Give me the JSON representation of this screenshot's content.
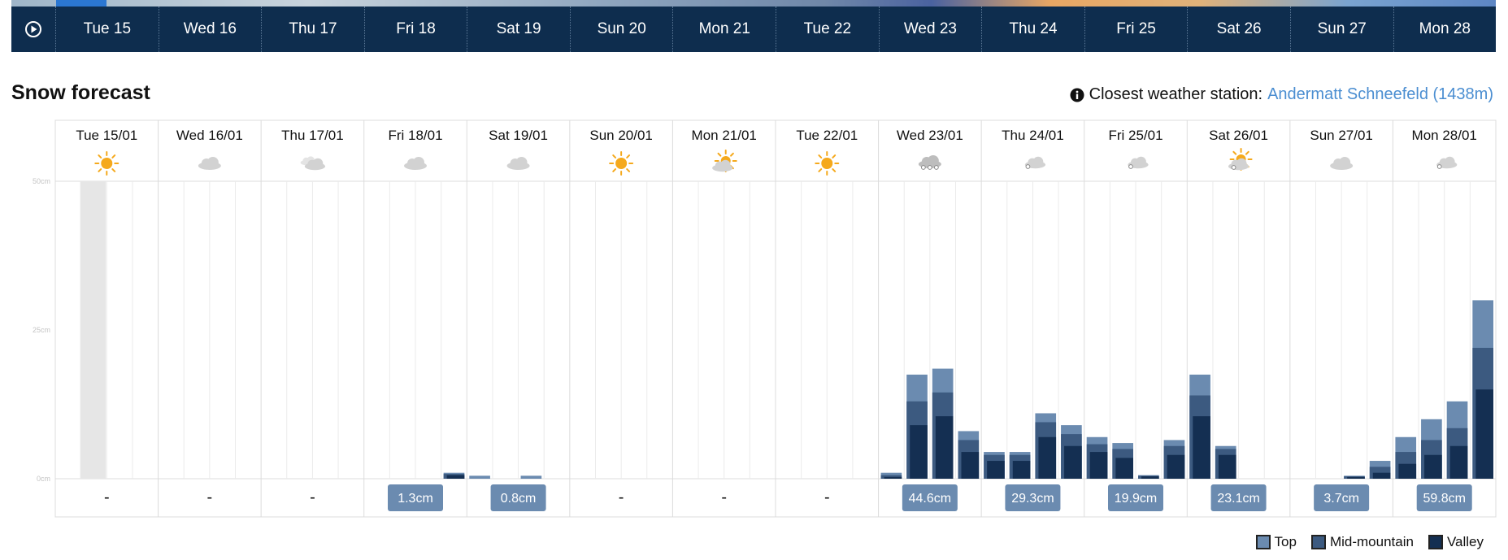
{
  "timeline": {
    "days": [
      "Tue 15",
      "Wed 16",
      "Thu 17",
      "Fri 18",
      "Sat 19",
      "Sun 20",
      "Mon 21",
      "Tue 22",
      "Wed 23",
      "Thu 24",
      "Fri 25",
      "Sat 26",
      "Sun 27",
      "Mon 28"
    ]
  },
  "section_title": "Snow forecast",
  "station": {
    "label": "Closest weather station:",
    "name": "Andermatt Schneefeld (1438m)"
  },
  "legend": [
    {
      "label": "Top",
      "color": "#6b8bb0"
    },
    {
      "label": "Mid-mountain",
      "color": "#3c5a80"
    },
    {
      "label": "Valley",
      "color": "#142f52"
    }
  ],
  "chart_data": {
    "type": "bar",
    "ylim": [
      0,
      50
    ],
    "yticks": [
      "0cm",
      "25cm",
      "50cm"
    ],
    "days": [
      {
        "label": "Tue 15/01",
        "icon": "sun-icon",
        "total": "-",
        "top": [
          0,
          0,
          0,
          0
        ],
        "mid": [
          0,
          0,
          0,
          0
        ],
        "valley": [
          0,
          0,
          0,
          0
        ]
      },
      {
        "label": "Wed 16/01",
        "icon": "cloud-icon",
        "total": "-",
        "top": [
          0,
          0,
          0,
          0
        ],
        "mid": [
          0,
          0,
          0,
          0
        ],
        "valley": [
          0,
          0,
          0,
          0
        ]
      },
      {
        "label": "Thu 17/01",
        "icon": "light-cloud-icon",
        "total": "-",
        "top": [
          0,
          0,
          0,
          0
        ],
        "mid": [
          0,
          0,
          0,
          0
        ],
        "valley": [
          0,
          0,
          0,
          0
        ]
      },
      {
        "label": "Fri 18/01",
        "icon": "cloud-icon",
        "total": "1.3cm",
        "top": [
          0,
          0,
          0,
          1.0
        ],
        "mid": [
          0,
          0,
          0,
          0.8
        ],
        "valley": [
          0,
          0,
          0,
          0.6
        ]
      },
      {
        "label": "Sat 19/01",
        "icon": "cloud-icon",
        "total": "0.8cm",
        "top": [
          0.5,
          0,
          0.5,
          0
        ],
        "mid": [
          0,
          0,
          0,
          0
        ],
        "valley": [
          0,
          0,
          0,
          0
        ]
      },
      {
        "label": "Sun 20/01",
        "icon": "sun-icon",
        "total": "-",
        "top": [
          0,
          0,
          0,
          0
        ],
        "mid": [
          0,
          0,
          0,
          0
        ],
        "valley": [
          0,
          0,
          0,
          0
        ]
      },
      {
        "label": "Mon 21/01",
        "icon": "sun-cloud-icon",
        "total": "-",
        "top": [
          0,
          0,
          0,
          0
        ],
        "mid": [
          0,
          0,
          0,
          0
        ],
        "valley": [
          0,
          0,
          0,
          0
        ]
      },
      {
        "label": "Tue 22/01",
        "icon": "sun-icon",
        "total": "-",
        "top": [
          0,
          0,
          0,
          0
        ],
        "mid": [
          0,
          0,
          0,
          0
        ],
        "valley": [
          0,
          0,
          0,
          0
        ]
      },
      {
        "label": "Wed 23/01",
        "icon": "heavy-snow-icon",
        "total": "44.6cm",
        "top": [
          1.0,
          17.5,
          18.5,
          8.0
        ],
        "mid": [
          0.6,
          13.0,
          14.5,
          6.5
        ],
        "valley": [
          0.3,
          9.0,
          10.5,
          4.5
        ]
      },
      {
        "label": "Thu 24/01",
        "icon": "snow-cloud-icon",
        "total": "29.3cm",
        "top": [
          4.5,
          4.5,
          11.0,
          9.0
        ],
        "mid": [
          4.0,
          4.0,
          9.5,
          7.5
        ],
        "valley": [
          3.0,
          3.0,
          7.0,
          5.5
        ]
      },
      {
        "label": "Fri 25/01",
        "icon": "snow-cloud-icon",
        "total": "19.9cm",
        "top": [
          7.0,
          6.0,
          0.6,
          6.5
        ],
        "mid": [
          5.8,
          5.0,
          0.5,
          5.5
        ],
        "valley": [
          4.5,
          3.5,
          0.4,
          4.0
        ]
      },
      {
        "label": "Sat 26/01",
        "icon": "sun-snow-icon",
        "total": "23.1cm",
        "top": [
          17.5,
          5.5,
          0,
          0
        ],
        "mid": [
          14.0,
          5.0,
          0,
          0
        ],
        "valley": [
          10.5,
          4.0,
          0,
          0
        ]
      },
      {
        "label": "Sun 27/01",
        "icon": "cloud-icon",
        "total": "3.7cm",
        "top": [
          0,
          0,
          0.5,
          3.0
        ],
        "mid": [
          0,
          0,
          0.4,
          2.0
        ],
        "valley": [
          0,
          0,
          0.3,
          1.0
        ]
      },
      {
        "label": "Mon 28/01",
        "icon": "snow-cloud-icon",
        "total": "59.8cm",
        "top": [
          7.0,
          10.0,
          13.0,
          30.0
        ],
        "mid": [
          4.5,
          6.5,
          8.5,
          22.0
        ],
        "valley": [
          2.5,
          4.0,
          5.5,
          15.0
        ]
      }
    ]
  }
}
